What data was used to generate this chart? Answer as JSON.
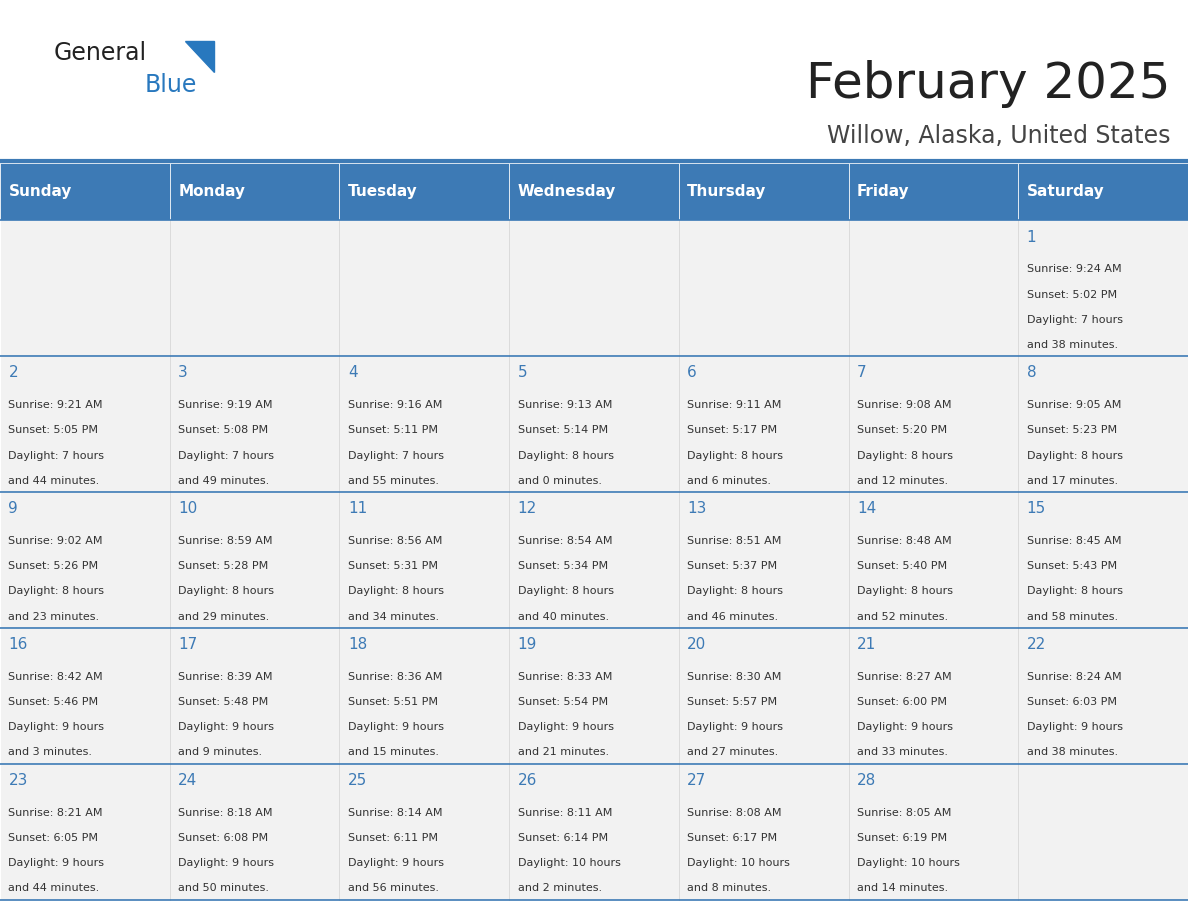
{
  "title": "February 2025",
  "subtitle": "Willow, Alaska, United States",
  "days_of_week": [
    "Sunday",
    "Monday",
    "Tuesday",
    "Wednesday",
    "Thursday",
    "Friday",
    "Saturday"
  ],
  "header_bg": "#3d7ab5",
  "header_text": "#ffffff",
  "cell_bg_light": "#f2f2f2",
  "border_color": "#3d7ab5",
  "day_num_color": "#3d7ab5",
  "text_color": "#333333",
  "logo_blue": "#2878be",
  "logo_black": "#222222",
  "calendar_data": [
    [
      {
        "day": null,
        "sunrise": null,
        "sunset": null,
        "daylight": null
      },
      {
        "day": null,
        "sunrise": null,
        "sunset": null,
        "daylight": null
      },
      {
        "day": null,
        "sunrise": null,
        "sunset": null,
        "daylight": null
      },
      {
        "day": null,
        "sunrise": null,
        "sunset": null,
        "daylight": null
      },
      {
        "day": null,
        "sunrise": null,
        "sunset": null,
        "daylight": null
      },
      {
        "day": null,
        "sunrise": null,
        "sunset": null,
        "daylight": null
      },
      {
        "day": 1,
        "sunrise": "9:24 AM",
        "sunset": "5:02 PM",
        "daylight": "7 hours\nand 38 minutes."
      }
    ],
    [
      {
        "day": 2,
        "sunrise": "9:21 AM",
        "sunset": "5:05 PM",
        "daylight": "7 hours\nand 44 minutes."
      },
      {
        "day": 3,
        "sunrise": "9:19 AM",
        "sunset": "5:08 PM",
        "daylight": "7 hours\nand 49 minutes."
      },
      {
        "day": 4,
        "sunrise": "9:16 AM",
        "sunset": "5:11 PM",
        "daylight": "7 hours\nand 55 minutes."
      },
      {
        "day": 5,
        "sunrise": "9:13 AM",
        "sunset": "5:14 PM",
        "daylight": "8 hours\nand 0 minutes."
      },
      {
        "day": 6,
        "sunrise": "9:11 AM",
        "sunset": "5:17 PM",
        "daylight": "8 hours\nand 6 minutes."
      },
      {
        "day": 7,
        "sunrise": "9:08 AM",
        "sunset": "5:20 PM",
        "daylight": "8 hours\nand 12 minutes."
      },
      {
        "day": 8,
        "sunrise": "9:05 AM",
        "sunset": "5:23 PM",
        "daylight": "8 hours\nand 17 minutes."
      }
    ],
    [
      {
        "day": 9,
        "sunrise": "9:02 AM",
        "sunset": "5:26 PM",
        "daylight": "8 hours\nand 23 minutes."
      },
      {
        "day": 10,
        "sunrise": "8:59 AM",
        "sunset": "5:28 PM",
        "daylight": "8 hours\nand 29 minutes."
      },
      {
        "day": 11,
        "sunrise": "8:56 AM",
        "sunset": "5:31 PM",
        "daylight": "8 hours\nand 34 minutes."
      },
      {
        "day": 12,
        "sunrise": "8:54 AM",
        "sunset": "5:34 PM",
        "daylight": "8 hours\nand 40 minutes."
      },
      {
        "day": 13,
        "sunrise": "8:51 AM",
        "sunset": "5:37 PM",
        "daylight": "8 hours\nand 46 minutes."
      },
      {
        "day": 14,
        "sunrise": "8:48 AM",
        "sunset": "5:40 PM",
        "daylight": "8 hours\nand 52 minutes."
      },
      {
        "day": 15,
        "sunrise": "8:45 AM",
        "sunset": "5:43 PM",
        "daylight": "8 hours\nand 58 minutes."
      }
    ],
    [
      {
        "day": 16,
        "sunrise": "8:42 AM",
        "sunset": "5:46 PM",
        "daylight": "9 hours\nand 3 minutes."
      },
      {
        "day": 17,
        "sunrise": "8:39 AM",
        "sunset": "5:48 PM",
        "daylight": "9 hours\nand 9 minutes."
      },
      {
        "day": 18,
        "sunrise": "8:36 AM",
        "sunset": "5:51 PM",
        "daylight": "9 hours\nand 15 minutes."
      },
      {
        "day": 19,
        "sunrise": "8:33 AM",
        "sunset": "5:54 PM",
        "daylight": "9 hours\nand 21 minutes."
      },
      {
        "day": 20,
        "sunrise": "8:30 AM",
        "sunset": "5:57 PM",
        "daylight": "9 hours\nand 27 minutes."
      },
      {
        "day": 21,
        "sunrise": "8:27 AM",
        "sunset": "6:00 PM",
        "daylight": "9 hours\nand 33 minutes."
      },
      {
        "day": 22,
        "sunrise": "8:24 AM",
        "sunset": "6:03 PM",
        "daylight": "9 hours\nand 38 minutes."
      }
    ],
    [
      {
        "day": 23,
        "sunrise": "8:21 AM",
        "sunset": "6:05 PM",
        "daylight": "9 hours\nand 44 minutes."
      },
      {
        "day": 24,
        "sunrise": "8:18 AM",
        "sunset": "6:08 PM",
        "daylight": "9 hours\nand 50 minutes."
      },
      {
        "day": 25,
        "sunrise": "8:14 AM",
        "sunset": "6:11 PM",
        "daylight": "9 hours\nand 56 minutes."
      },
      {
        "day": 26,
        "sunrise": "8:11 AM",
        "sunset": "6:14 PM",
        "daylight": "10 hours\nand 2 minutes."
      },
      {
        "day": 27,
        "sunrise": "8:08 AM",
        "sunset": "6:17 PM",
        "daylight": "10 hours\nand 8 minutes."
      },
      {
        "day": 28,
        "sunrise": "8:05 AM",
        "sunset": "6:19 PM",
        "daylight": "10 hours\nand 14 minutes."
      },
      {
        "day": null,
        "sunrise": null,
        "sunset": null,
        "daylight": null
      }
    ]
  ]
}
